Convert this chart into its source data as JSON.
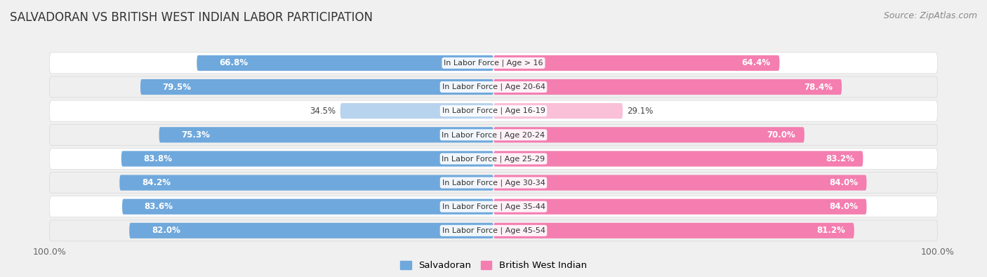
{
  "title": "SALVADORAN VS BRITISH WEST INDIAN LABOR PARTICIPATION",
  "source": "Source: ZipAtlas.com",
  "categories": [
    "In Labor Force | Age > 16",
    "In Labor Force | Age 20-64",
    "In Labor Force | Age 16-19",
    "In Labor Force | Age 20-24",
    "In Labor Force | Age 25-29",
    "In Labor Force | Age 30-34",
    "In Labor Force | Age 35-44",
    "In Labor Force | Age 45-54"
  ],
  "salvadoran": [
    66.8,
    79.5,
    34.5,
    75.3,
    83.8,
    84.2,
    83.6,
    82.0
  ],
  "british_west_indian": [
    64.4,
    78.4,
    29.1,
    70.0,
    83.2,
    84.0,
    84.0,
    81.2
  ],
  "salvadoran_color": "#6fa8dc",
  "british_west_indian_color": "#f47eb0",
  "salvadoran_color_light": "#b8d3ee",
  "british_west_indian_color_light": "#f9c0d8",
  "background_color": "#f0f0f0",
  "row_bg_light": "#f8f8f8",
  "row_bg_dark": "#e8e8e8",
  "max_value": 100.0,
  "legend_label_1": "Salvadoran",
  "legend_label_2": "British West Indian",
  "title_fontsize": 12,
  "source_fontsize": 9,
  "bar_label_fontsize": 8.5,
  "cat_label_fontsize": 8,
  "axis_fontsize": 9
}
